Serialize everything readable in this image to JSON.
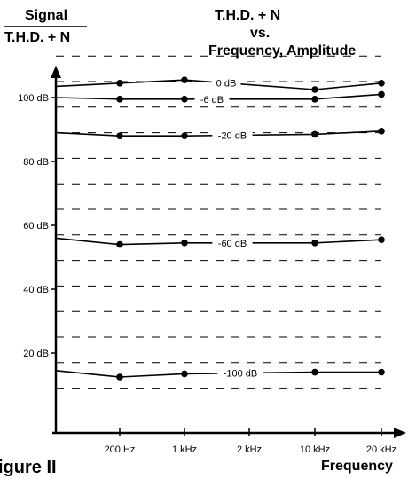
{
  "chart_data": {
    "type": "line",
    "title_lines": [
      "T.H.D. + N",
      "vs.",
      "Frequency, Amplitude"
    ],
    "ylabel_top": "Signal",
    "ylabel_bottom": "T.H.D. + N",
    "xlabel": "Frequency",
    "figure_label": "igure II",
    "x_ticks": [
      "200 Hz",
      "1 kHz",
      "2 kHz",
      "10 kHz",
      "20 kHz"
    ],
    "y_ticks": [
      {
        "value": 20,
        "label": "20 dB"
      },
      {
        "value": 40,
        "label": "40 dB"
      },
      {
        "value": 60,
        "label": "60 dB"
      },
      {
        "value": 80,
        "label": "80 dB"
      },
      {
        "value": 100,
        "label": "100 dB"
      }
    ],
    "ylim": [
      -5,
      113
    ],
    "grid_dashed_values": [
      9,
      17,
      25,
      33,
      41,
      49,
      57,
      65,
      73,
      81,
      89,
      97,
      105,
      113
    ],
    "series": [
      {
        "name": "0 dB",
        "x": [
          "20 Hz",
          "200 Hz",
          "1 kHz",
          "10 kHz",
          "20 kHz"
        ],
        "values": [
          103.5,
          104.5,
          105.5,
          102.5,
          104.5
        ]
      },
      {
        "name": "-6 dB",
        "x": [
          "20 Hz",
          "200 Hz",
          "1 kHz",
          "10 kHz",
          "20 kHz"
        ],
        "values": [
          100,
          99.5,
          99.5,
          99.5,
          101
        ]
      },
      {
        "name": "-20 dB",
        "x": [
          "20 Hz",
          "200 Hz",
          "1 kHz",
          "10 kHz",
          "20 kHz"
        ],
        "values": [
          89,
          88,
          88,
          88.5,
          89.5
        ]
      },
      {
        "name": "-60 dB",
        "x": [
          "20 Hz",
          "200 Hz",
          "1 kHz",
          "10 kHz",
          "20 kHz"
        ],
        "values": [
          56,
          54,
          54.5,
          54.5,
          55.5
        ]
      },
      {
        "name": "-100 dB",
        "x": [
          "20 Hz",
          "200 Hz",
          "1 kHz",
          "10 kHz",
          "20 kHz"
        ],
        "values": [
          14.5,
          12.5,
          13.5,
          14,
          14
        ]
      }
    ]
  }
}
